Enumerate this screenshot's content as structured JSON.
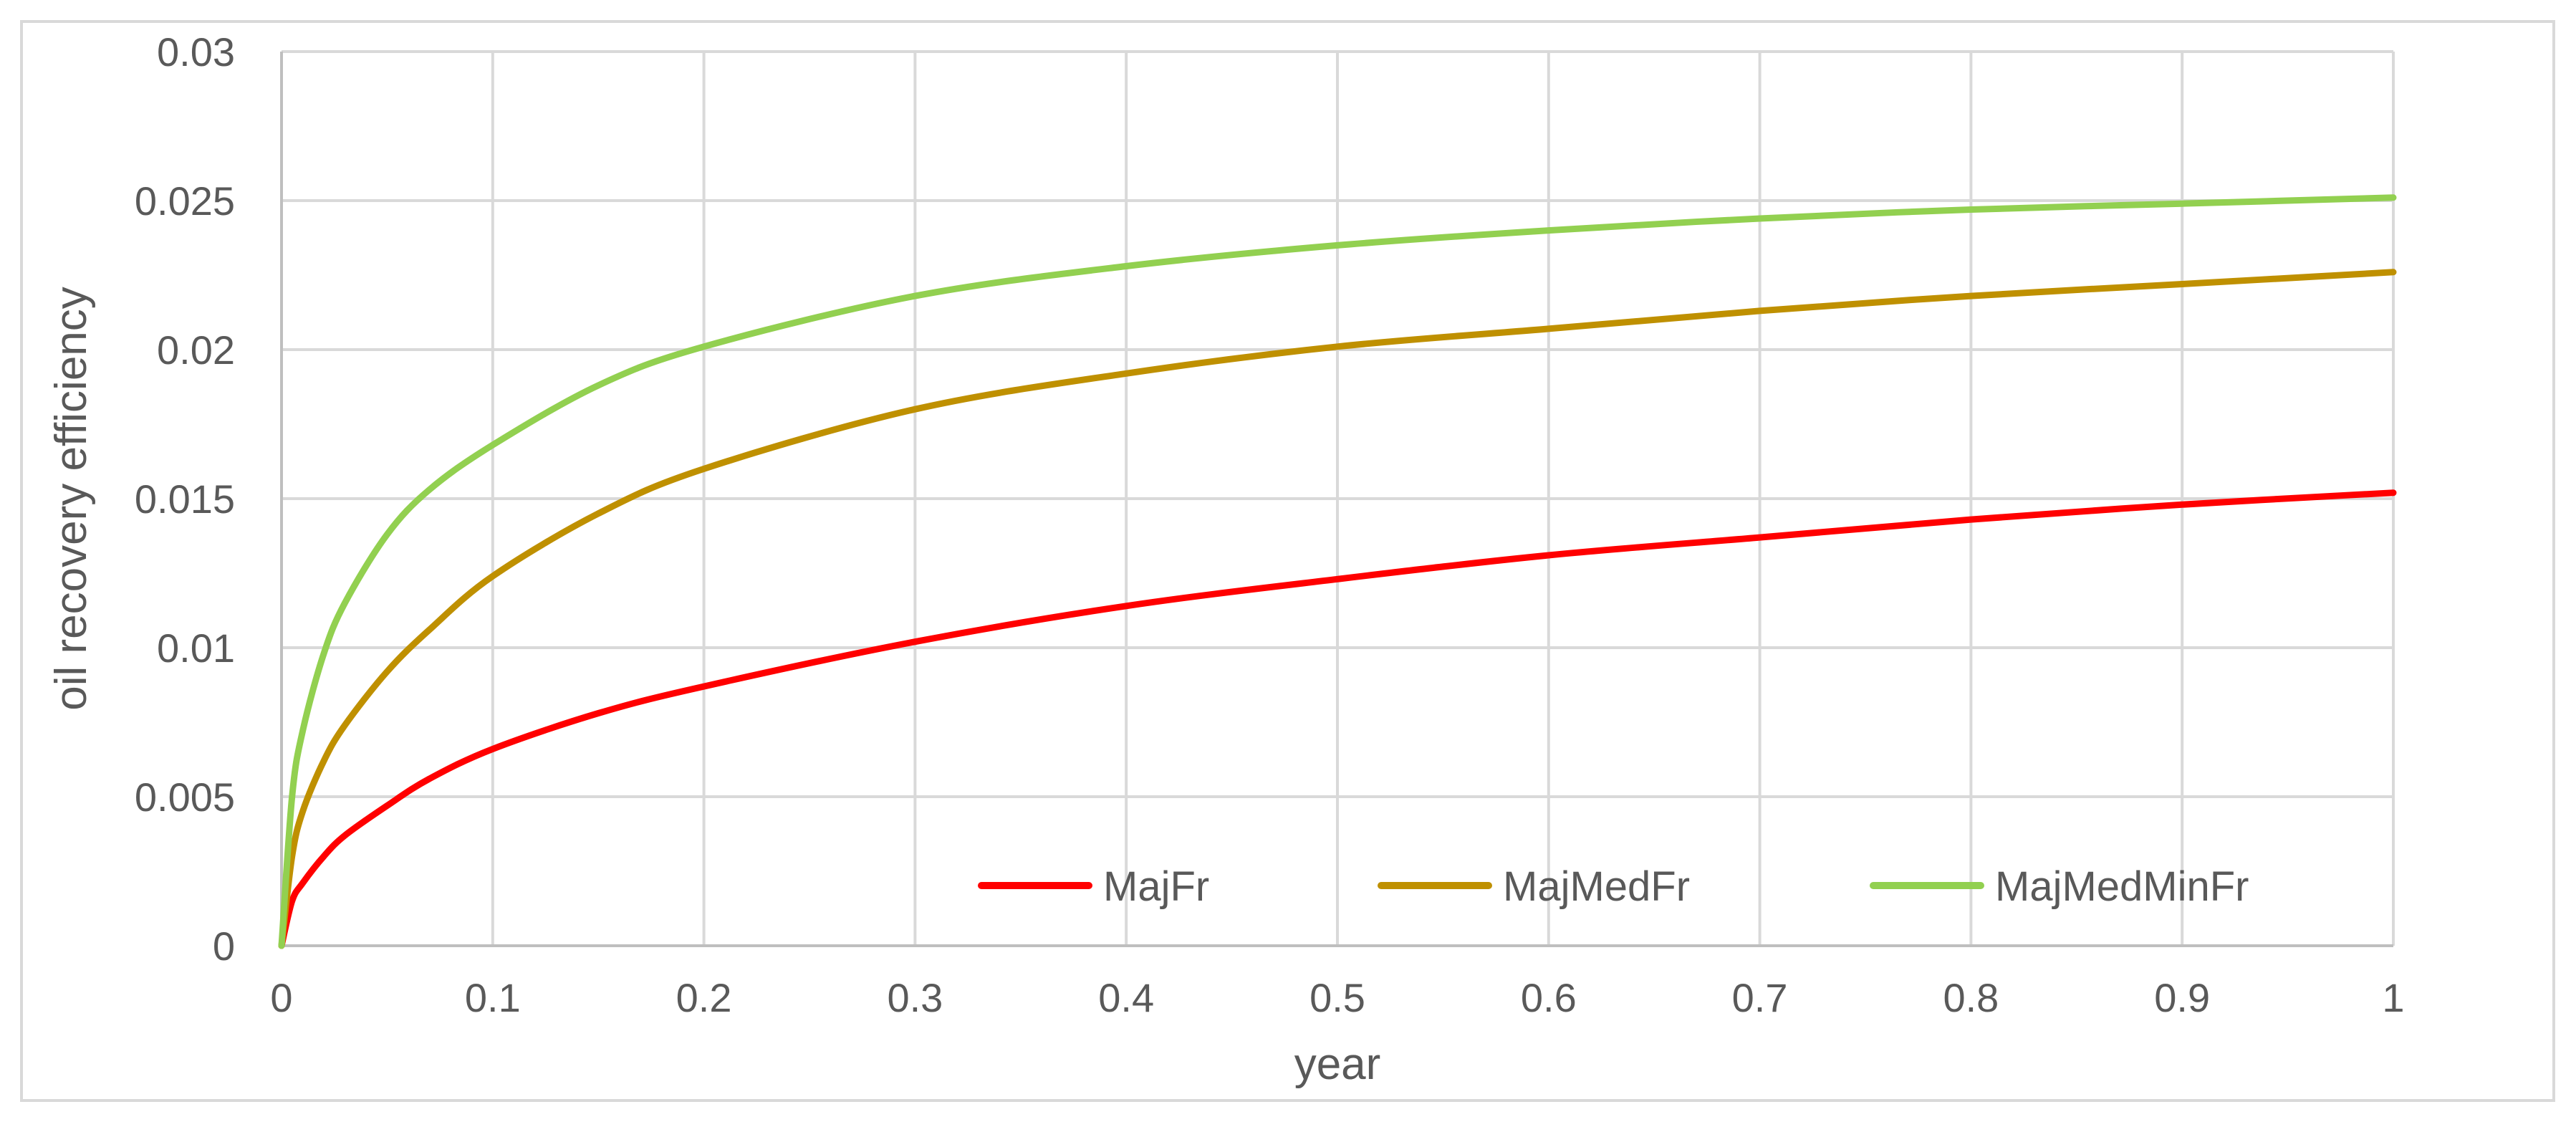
{
  "chart_data": {
    "type": "line",
    "title": "",
    "xlabel": "year",
    "ylabel": "oil recovery efficiency",
    "xlim": [
      0,
      1
    ],
    "ylim": [
      0,
      0.03
    ],
    "x_ticks": [
      "0",
      "0.1",
      "0.2",
      "0.3",
      "0.4",
      "0.5",
      "0.6",
      "0.7",
      "0.8",
      "0.9",
      "1"
    ],
    "y_ticks": [
      "0",
      "0.005",
      "0.01",
      "0.015",
      "0.02",
      "0.025",
      "0.03"
    ],
    "grid": true,
    "legend_position": "bottom-center inside plot",
    "x": [
      0,
      0.005,
      0.01,
      0.02,
      0.03,
      0.05,
      0.07,
      0.1,
      0.15,
      0.2,
      0.3,
      0.4,
      0.5,
      0.6,
      0.7,
      0.8,
      0.9,
      1.0
    ],
    "series": [
      {
        "name": "MajFr",
        "color": "#ff0000",
        "values": [
          0,
          0.0015,
          0.0021,
          0.003,
          0.0037,
          0.0047,
          0.0056,
          0.0066,
          0.0078,
          0.0087,
          0.0102,
          0.0114,
          0.0123,
          0.0131,
          0.0137,
          0.0143,
          0.0148,
          0.0152
        ]
      },
      {
        "name": "MajMedFr",
        "color": "#bf9000",
        "values": [
          0,
          0.003,
          0.0045,
          0.0062,
          0.0074,
          0.0092,
          0.0106,
          0.0124,
          0.0145,
          0.016,
          0.018,
          0.0192,
          0.0201,
          0.0207,
          0.0213,
          0.0218,
          0.0222,
          0.0226
        ]
      },
      {
        "name": "MajMedMinFr",
        "color": "#92d050",
        "values": [
          0,
          0.005,
          0.0072,
          0.0098,
          0.0115,
          0.0138,
          0.0153,
          0.0168,
          0.0188,
          0.0201,
          0.0218,
          0.0228,
          0.0235,
          0.024,
          0.0244,
          0.0247,
          0.0249,
          0.0251
        ]
      }
    ]
  }
}
